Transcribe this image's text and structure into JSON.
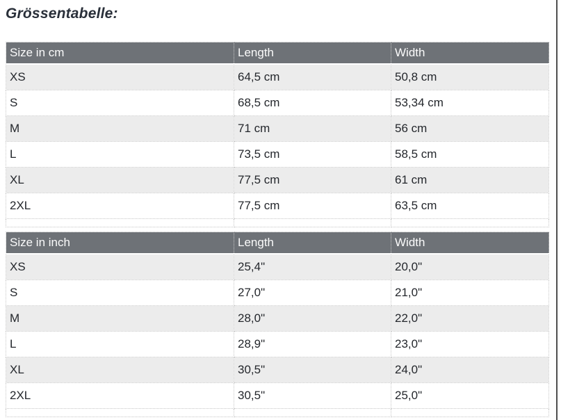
{
  "page": {
    "title": "Grössentabelle:"
  },
  "tables": {
    "cm": {
      "headers": [
        "Size in cm",
        "Length",
        "Width"
      ],
      "rows": [
        [
          "XS",
          "64,5 cm",
          "50,8 cm"
        ],
        [
          "S",
          "68,5 cm",
          "53,34 cm"
        ],
        [
          "M",
          "71 cm",
          "56 cm"
        ],
        [
          "L",
          "73,5 cm",
          "58,5 cm"
        ],
        [
          "XL",
          "77,5 cm",
          "61 cm"
        ],
        [
          "2XL",
          "77,5 cm",
          "63,5 cm"
        ]
      ]
    },
    "inch": {
      "headers": [
        "Size in inch",
        "Length",
        "Width"
      ],
      "rows": [
        [
          "XS",
          "25,4\"",
          "20,0\""
        ],
        [
          "S",
          "27,0\"",
          "21,0\""
        ],
        [
          "M",
          "28,0\"",
          "22,0\""
        ],
        [
          "L",
          "28,9\"",
          "23,0\""
        ],
        [
          "XL",
          "30,5\"",
          "24,0\""
        ],
        [
          "2XL",
          "30,5\"",
          "25,0\""
        ]
      ]
    }
  },
  "colors": {
    "title_color": "#2a303a",
    "text_color": "#24272c",
    "header_bg": "#6e7277",
    "header_text": "#fbfbfb",
    "row_alt_bg": "#ececec",
    "border_dotted": "#c7c7c7",
    "right_line": "#4e4e4e"
  }
}
